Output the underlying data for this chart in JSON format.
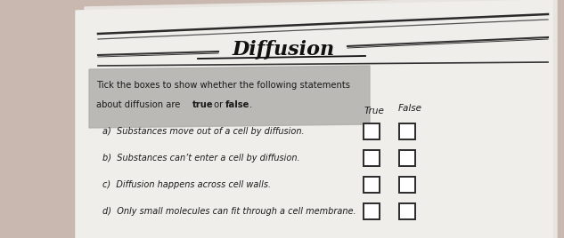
{
  "title": "Diffusion",
  "col_true": "True",
  "col_false": "False",
  "instruction_line1": "Tick the boxes to show whether the following statements",
  "instruction_line2a": "about diffusion are ",
  "instruction_bold_true": "true",
  "instruction_mid": " or ",
  "instruction_bold_false": "false",
  "instruction_period": ".",
  "statements": [
    "a)  Substances move out of a cell by diffusion.",
    "b)  Substances can’t enter a cell by diffusion.",
    "c)  Diffusion happens across cell walls.",
    "d)  Only small molecules can fit through a cell membrane."
  ],
  "page_bg": "#c8b8b0",
  "paper_bg": "#f0eeea",
  "paper_bg2": "#e8e5e0",
  "instruction_bg": "#b0aeaa",
  "box_edge": "#2a2a2a",
  "text_color": "#1a1a1a",
  "line_color": "#333333",
  "title_color": "#111111",
  "curve_color1": "#2a2a2a",
  "curve_color2": "#555555"
}
